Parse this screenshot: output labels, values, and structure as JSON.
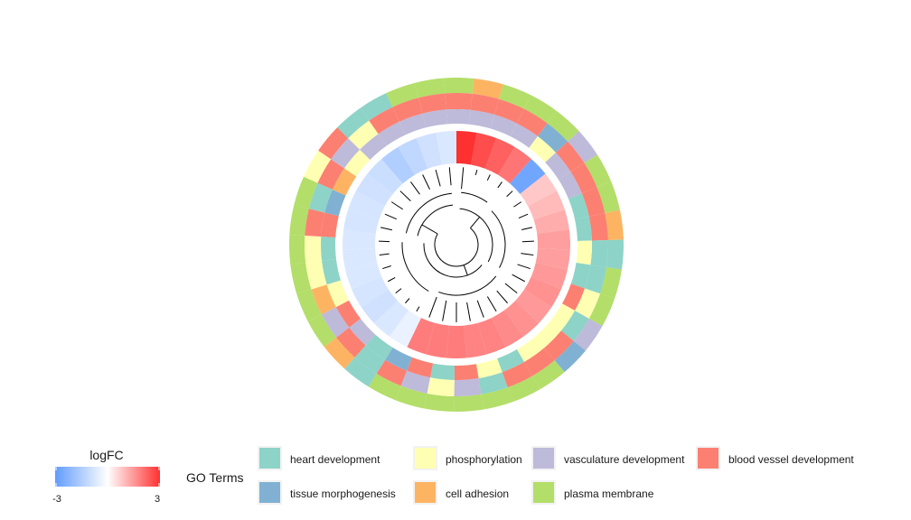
{
  "chart_data": {
    "type": "heatmap",
    "layout": "circular",
    "legend": {
      "logfc": {
        "title": "logFC",
        "min_label": "-3",
        "max_label": "3",
        "range": [
          -3,
          3
        ],
        "low_color": "#619CFF",
        "mid_color": "#FFFFFF",
        "high_color": "#FF3030"
      },
      "go": {
        "title": "GO Terms",
        "items": [
          {
            "label": "heart development",
            "color": "#8DD3C7"
          },
          {
            "label": "phosphorylation",
            "color": "#FFFFB3"
          },
          {
            "label": "vasculature development",
            "color": "#BEBADA"
          },
          {
            "label": "blood vessel development",
            "color": "#FB8072"
          },
          {
            "label": "tissue morphogenesis",
            "color": "#80B1D3"
          },
          {
            "label": "cell adhesion",
            "color": "#FDB462"
          },
          {
            "label": "plasma membrane",
            "color": "#B3DE69"
          }
        ]
      }
    },
    "logfc_values": [
      3,
      2.6,
      2.3,
      2.0,
      -2.7,
      0.8,
      1.0,
      1.2,
      1.4,
      1.4,
      1.5,
      1.6,
      1.5,
      1.6,
      1.7,
      1.8,
      1.8,
      1.9,
      1.9,
      1.9,
      -0.4,
      -0.7,
      -0.9,
      -0.8,
      -0.7,
      -0.7,
      -0.7,
      -0.8,
      -0.8,
      -0.9,
      -1.0,
      -1.5,
      -1.2,
      -0.9,
      -0.7
    ],
    "go_rings": [
      [
        5,
        6,
        6,
        6,
        2,
        6,
        6,
        5,
        0,
        6,
        6,
        2,
        4,
        6,
        6,
        6,
        6,
        6,
        6,
        6,
        0,
        5,
        6,
        6,
        6,
        6,
        6,
        6,
        1,
        3,
        0,
        0,
        6,
        6,
        6
      ],
      [
        3,
        3,
        3,
        4,
        3,
        3,
        3,
        3,
        0,
        0,
        1,
        0,
        3,
        3,
        3,
        0,
        2,
        1,
        2,
        3,
        0,
        3,
        2,
        5,
        1,
        1,
        3,
        0,
        3,
        2,
        1,
        3,
        3,
        3,
        3
      ],
      [
        2,
        2,
        2,
        1,
        2,
        2,
        0,
        0,
        1,
        0,
        3,
        1,
        1,
        1,
        0,
        1,
        3,
        0,
        3,
        4,
        0,
        2,
        3,
        1,
        0,
        0,
        3,
        4,
        5,
        1,
        2,
        2,
        2,
        2,
        2
      ]
    ]
  }
}
